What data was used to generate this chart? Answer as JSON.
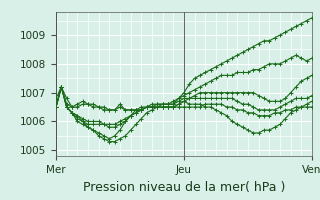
{
  "bg_color": "#d8f0e8",
  "grid_color": "#ffffff",
  "line_color": "#1a6b1a",
  "marker_color": "#1a6b1a",
  "xlabel": "Pression niveau de la mer( hPa )",
  "xlabel_fontsize": 9,
  "tick_fontsize": 7.5,
  "ylim": [
    1004.8,
    1009.8
  ],
  "yticks": [
    1005,
    1006,
    1007,
    1008,
    1009
  ],
  "vline_positions": [
    0,
    24,
    48
  ],
  "xtick_labels": [
    "Mer",
    "Jeu",
    "Ven"
  ],
  "xtick_positions": [
    0,
    24,
    48
  ],
  "n_points": 49,
  "series": [
    [
      1006.5,
      1007.2,
      1006.8,
      1006.5,
      1006.5,
      1006.6,
      1006.6,
      1006.5,
      1006.5,
      1006.4,
      1006.4,
      1006.4,
      1006.6,
      1006.4,
      1006.4,
      1006.4,
      1006.4,
      1006.5,
      1006.5,
      1006.6,
      1006.6,
      1006.6,
      1006.6,
      1006.8,
      1007.0,
      1007.3,
      1007.5,
      1007.6,
      1007.7,
      1007.8,
      1007.9,
      1008.0,
      1008.1,
      1008.2,
      1008.3,
      1008.4,
      1008.5,
      1008.6,
      1008.7,
      1008.8,
      1008.8,
      1008.9,
      1009.0,
      1009.1,
      1009.2,
      1009.3,
      1009.4,
      1009.5,
      1009.6
    ],
    [
      1006.8,
      1007.2,
      1006.6,
      1006.5,
      1006.6,
      1006.7,
      1006.6,
      1006.6,
      1006.5,
      1006.5,
      1006.4,
      1006.4,
      1006.5,
      1006.4,
      1006.4,
      1006.4,
      1006.4,
      1006.5,
      1006.5,
      1006.5,
      1006.6,
      1006.6,
      1006.7,
      1006.8,
      1006.9,
      1007.0,
      1007.1,
      1007.2,
      1007.3,
      1007.4,
      1007.5,
      1007.6,
      1007.6,
      1007.6,
      1007.7,
      1007.7,
      1007.7,
      1007.8,
      1007.8,
      1007.9,
      1008.0,
      1008.0,
      1008.0,
      1008.1,
      1008.2,
      1008.3,
      1008.2,
      1008.1,
      1008.2
    ],
    [
      1006.5,
      1007.2,
      1006.5,
      1006.3,
      1006.2,
      1006.0,
      1005.8,
      1005.7,
      1005.5,
      1005.4,
      1005.3,
      1005.3,
      1005.4,
      1005.5,
      1005.7,
      1005.9,
      1006.1,
      1006.3,
      1006.4,
      1006.5,
      1006.5,
      1006.5,
      1006.5,
      1006.6,
      1006.7,
      1006.8,
      1006.9,
      1007.0,
      1007.0,
      1007.0,
      1007.0,
      1007.0,
      1007.0,
      1007.0,
      1007.0,
      1007.0,
      1007.0,
      1007.0,
      1006.9,
      1006.8,
      1006.7,
      1006.7,
      1006.7,
      1006.8,
      1007.0,
      1007.2,
      1007.4,
      1007.5,
      1007.6
    ],
    [
      1006.5,
      1007.2,
      1006.5,
      1006.3,
      1006.0,
      1005.9,
      1005.8,
      1005.7,
      1005.6,
      1005.5,
      1005.4,
      1005.5,
      1005.7,
      1006.0,
      1006.2,
      1006.4,
      1006.5,
      1006.5,
      1006.5,
      1006.5,
      1006.5,
      1006.5,
      1006.5,
      1006.6,
      1006.7,
      1006.6,
      1006.6,
      1006.6,
      1006.5,
      1006.5,
      1006.4,
      1006.3,
      1006.2,
      1006.0,
      1005.9,
      1005.8,
      1005.7,
      1005.6,
      1005.6,
      1005.7,
      1005.7,
      1005.8,
      1005.9,
      1006.1,
      1006.3,
      1006.4,
      1006.5,
      1006.6,
      1006.7
    ],
    [
      1006.5,
      1007.2,
      1006.5,
      1006.3,
      1006.1,
      1006.0,
      1005.9,
      1005.9,
      1005.9,
      1005.9,
      1005.8,
      1005.8,
      1005.9,
      1006.0,
      1006.2,
      1006.3,
      1006.4,
      1006.5,
      1006.6,
      1006.6,
      1006.6,
      1006.6,
      1006.6,
      1006.7,
      1006.8,
      1006.8,
      1006.8,
      1006.8,
      1006.8,
      1006.8,
      1006.8,
      1006.8,
      1006.8,
      1006.8,
      1006.7,
      1006.6,
      1006.6,
      1006.5,
      1006.4,
      1006.4,
      1006.4,
      1006.4,
      1006.5,
      1006.6,
      1006.7,
      1006.8,
      1006.8,
      1006.8,
      1006.9
    ],
    [
      1006.5,
      1007.2,
      1006.5,
      1006.3,
      1006.2,
      1006.1,
      1006.0,
      1006.0,
      1006.0,
      1005.9,
      1005.9,
      1005.9,
      1006.0,
      1006.1,
      1006.2,
      1006.3,
      1006.4,
      1006.5,
      1006.5,
      1006.5,
      1006.5,
      1006.5,
      1006.5,
      1006.5,
      1006.5,
      1006.5,
      1006.5,
      1006.5,
      1006.6,
      1006.6,
      1006.6,
      1006.6,
      1006.5,
      1006.5,
      1006.4,
      1006.4,
      1006.3,
      1006.3,
      1006.2,
      1006.2,
      1006.2,
      1006.3,
      1006.3,
      1006.4,
      1006.4,
      1006.5,
      1006.5,
      1006.5,
      1006.5
    ]
  ]
}
